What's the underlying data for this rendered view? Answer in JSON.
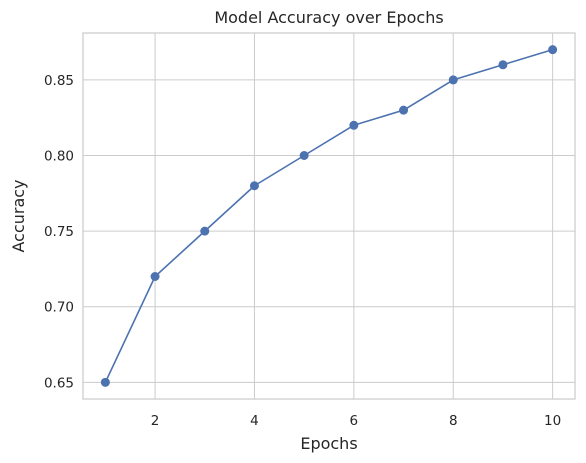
{
  "chart_data": {
    "type": "line",
    "title": "Model Accuracy over Epochs",
    "xlabel": "Epochs",
    "ylabel": "Accuracy",
    "x": [
      1,
      2,
      3,
      4,
      5,
      6,
      7,
      8,
      9,
      10
    ],
    "series": [
      {
        "values": [
          0.65,
          0.72,
          0.75,
          0.78,
          0.8,
          0.82,
          0.83,
          0.85,
          0.86,
          0.87
        ],
        "color": "#4c72b0",
        "marker": "circle"
      }
    ],
    "xlim": [
      0.55,
      10.45
    ],
    "ylim": [
      0.639,
      0.881
    ],
    "xticks": [
      2,
      4,
      6,
      8,
      10
    ],
    "yticks": [
      0.65,
      0.7,
      0.75,
      0.8,
      0.85
    ],
    "xtick_labels": [
      "2",
      "4",
      "6",
      "8",
      "10"
    ],
    "ytick_labels": [
      "0.65",
      "0.70",
      "0.75",
      "0.80",
      "0.85"
    ],
    "grid": true,
    "legend": false
  }
}
